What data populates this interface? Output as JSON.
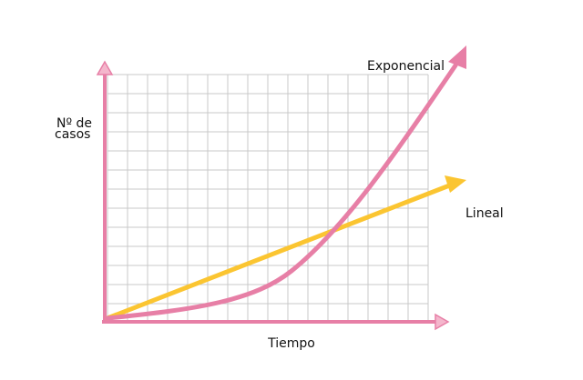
{
  "labels": {
    "y_axis": [
      "Nº de",
      "casos"
    ],
    "x_axis": "Tiempo",
    "exponential": "Exponencial",
    "linear": "Lineal"
  }
}
